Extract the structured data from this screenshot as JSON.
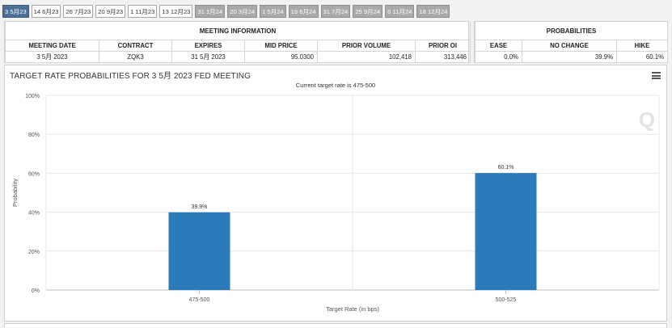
{
  "tabs": [
    {
      "label": "3 5月23",
      "state": "active"
    },
    {
      "label": "14 6月23",
      "state": "normal"
    },
    {
      "label": "26 7月23",
      "state": "normal"
    },
    {
      "label": "20 9月23",
      "state": "normal"
    },
    {
      "label": "1 11月23",
      "state": "normal"
    },
    {
      "label": "13 12月23",
      "state": "normal"
    },
    {
      "label": "31 1月24",
      "state": "gray"
    },
    {
      "label": "20 3月24",
      "state": "gray"
    },
    {
      "label": "1 5月24",
      "state": "gray"
    },
    {
      "label": "19 6月24",
      "state": "gray"
    },
    {
      "label": "31 7月24",
      "state": "gray"
    },
    {
      "label": "25 9月24",
      "state": "gray"
    },
    {
      "label": "6 11月24",
      "state": "gray"
    },
    {
      "label": "18 12月24",
      "state": "gray"
    }
  ],
  "meeting_info": {
    "title": "MEETING INFORMATION",
    "headers": [
      "MEETING DATE",
      "CONTRACT",
      "EXPIRES",
      "MID PRICE",
      "PRIOR VOLUME",
      "PRIOR OI"
    ],
    "row": [
      "3 5月 2023",
      "ZQK3",
      "31 5月 2023",
      "95.0300",
      "102,418",
      "313,446"
    ]
  },
  "probabilities": {
    "title": "PROBABILITIES",
    "headers": [
      "EASE",
      "NO CHANGE",
      "HIKE"
    ],
    "row": [
      "0.0%",
      "39.9%",
      "60.1%"
    ]
  },
  "chart": {
    "title": "TARGET RATE PROBABILITIES FOR 3 5月 2023 FED MEETING",
    "subtitle": "Current target rate is 475-500",
    "menu_icon": "hamburger-menu-icon",
    "watermark": "Q"
  },
  "chart_data": {
    "type": "bar",
    "categories": [
      "475-500",
      "500-525"
    ],
    "values": [
      39.9,
      60.1
    ],
    "data_labels": [
      "39.9%",
      "60.1%"
    ],
    "xlabel": "Target Rate (in bps)",
    "ylabel": "Probability",
    "ylim": [
      0,
      100
    ],
    "yticks": [
      "0%",
      "20%",
      "40%",
      "60%",
      "80%",
      "100%"
    ],
    "bar_color": "#2b7bba",
    "grid": true
  }
}
